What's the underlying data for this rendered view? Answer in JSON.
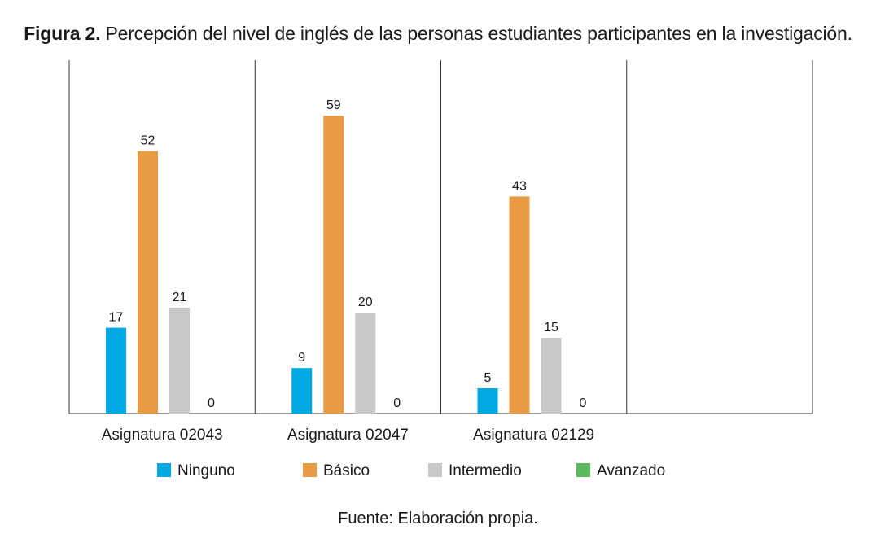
{
  "figure": {
    "label": "Figura 2.",
    "title": "Percepción del nivel de inglés de las personas estudiantes participantes en la investigación."
  },
  "source": "Fuente: Elaboración propia.",
  "chart_data": {
    "type": "bar",
    "categories": [
      "Asignatura 02043",
      "Asignatura 02047",
      "Asignatura 02129"
    ],
    "series": [
      {
        "name": "Ninguno",
        "color": "#00a8e4",
        "values": [
          17,
          9,
          5
        ]
      },
      {
        "name": "Básico",
        "color": "#e89b43",
        "values": [
          52,
          59,
          43
        ]
      },
      {
        "name": "Intermedio",
        "color": "#c8c8c9",
        "values": [
          21,
          20,
          15
        ]
      },
      {
        "name": "Avanzado",
        "color": "#5cb85c",
        "values": [
          0,
          0,
          0
        ]
      }
    ],
    "data_labels": true,
    "legend_position": "bottom",
    "grid": false,
    "ylim": [
      0,
      64
    ],
    "empty_slots_after_categories": 1
  }
}
